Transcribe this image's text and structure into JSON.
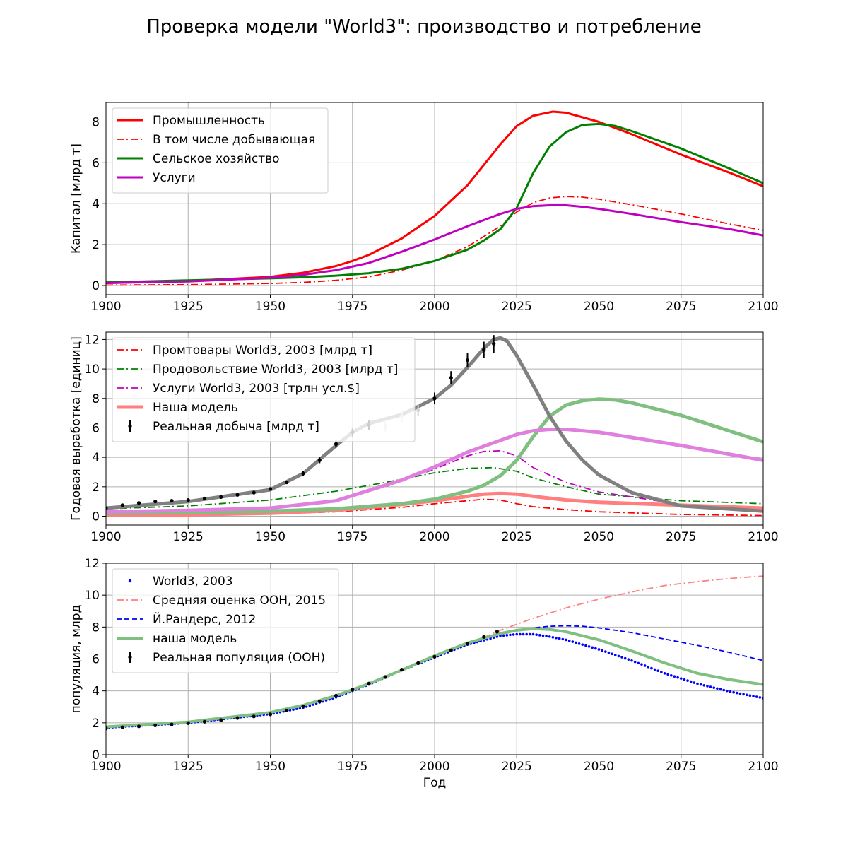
{
  "title": "Проверка модели \"World3\": производство и потребление",
  "colors": {
    "red": "#ff0000",
    "green": "#008000",
    "magenta": "#bf00bf",
    "black": "#000000",
    "grey": "#808080",
    "light_grey": "#d3d3d3",
    "salmon": "#ff7f7f",
    "light_green": "#7fbf7f",
    "orchid": "#df80df",
    "blue": "#0000ff",
    "pink": "#ff8080",
    "grid": "#b0b0b0"
  },
  "chart_data": [
    {
      "type": "line",
      "xlabel": "",
      "ylabel": "Капитал [млрд т]",
      "xlim": [
        1900,
        2100
      ],
      "ylim": [
        -0.45,
        8.95
      ],
      "xticks": [
        1900,
        1925,
        1950,
        1975,
        2000,
        2025,
        2050,
        2075,
        2100
      ],
      "yticks": [
        0,
        2,
        4,
        6,
        8
      ],
      "grid": true,
      "legend_position": "top-left",
      "series": [
        {
          "name": "Промышленность",
          "color": "#ff0000",
          "style": "solid",
          "width": 3,
          "x": [
            1900,
            1925,
            1950,
            1960,
            1970,
            1975,
            1980,
            1990,
            2000,
            2010,
            2020,
            2025,
            2030,
            2036,
            2040,
            2050,
            2060,
            2075,
            2090,
            2100
          ],
          "y": [
            0.12,
            0.22,
            0.42,
            0.62,
            0.95,
            1.2,
            1.5,
            2.3,
            3.4,
            4.9,
            6.9,
            7.8,
            8.3,
            8.5,
            8.45,
            8.0,
            7.4,
            6.4,
            5.5,
            4.85
          ]
        },
        {
          "name": "В том числе добывающая",
          "color": "#ff0000",
          "style": "dashdot",
          "width": 1.8,
          "x": [
            1900,
            1925,
            1950,
            1960,
            1970,
            1980,
            1990,
            2000,
            2010,
            2020,
            2025,
            2030,
            2035,
            2040,
            2045,
            2050,
            2060,
            2075,
            2090,
            2100
          ],
          "y": [
            0.02,
            0.04,
            0.1,
            0.15,
            0.25,
            0.42,
            0.75,
            1.2,
            1.9,
            2.9,
            3.6,
            4.05,
            4.28,
            4.35,
            4.32,
            4.22,
            3.95,
            3.5,
            3.0,
            2.7
          ]
        },
        {
          "name": "Сельское хозяйство",
          "color": "#008000",
          "style": "solid",
          "width": 3,
          "x": [
            1900,
            1925,
            1950,
            1960,
            1970,
            1980,
            1990,
            2000,
            2010,
            2015,
            2020,
            2025,
            2030,
            2035,
            2040,
            2045,
            2050,
            2055,
            2060,
            2075,
            2090,
            2100
          ],
          "y": [
            0.15,
            0.25,
            0.35,
            0.4,
            0.48,
            0.6,
            0.82,
            1.2,
            1.75,
            2.2,
            2.75,
            3.8,
            5.5,
            6.8,
            7.5,
            7.85,
            7.9,
            7.8,
            7.55,
            6.7,
            5.7,
            5.0
          ]
        },
        {
          "name": "Услуги",
          "color": "#bf00bf",
          "style": "solid",
          "width": 3,
          "x": [
            1900,
            1925,
            1950,
            1960,
            1970,
            1980,
            1990,
            2000,
            2010,
            2020,
            2025,
            2030,
            2035,
            2040,
            2045,
            2050,
            2060,
            2075,
            2090,
            2100
          ],
          "y": [
            0.12,
            0.2,
            0.38,
            0.52,
            0.75,
            1.1,
            1.65,
            2.25,
            2.9,
            3.5,
            3.75,
            3.88,
            3.92,
            3.92,
            3.85,
            3.75,
            3.5,
            3.1,
            2.75,
            2.45
          ]
        }
      ]
    },
    {
      "type": "line",
      "xlabel": "",
      "ylabel": "Годовая выработка [единиц]",
      "xlim": [
        1900,
        2100
      ],
      "ylim": [
        -0.6,
        12.5
      ],
      "xticks": [
        1900,
        1925,
        1950,
        1975,
        2000,
        2025,
        2050,
        2075,
        2100
      ],
      "yticks": [
        0,
        2,
        4,
        6,
        8,
        10,
        12
      ],
      "grid": true,
      "legend_position": "top-left",
      "series": [
        {
          "name": "Промтовары World3, 2003 [млрд т]",
          "color": "#ff0000",
          "style": "dashdot",
          "width": 1.8,
          "in_legend": true,
          "x": [
            1900,
            1925,
            1950,
            1970,
            1990,
            2000,
            2010,
            2015,
            2020,
            2025,
            2030,
            2040,
            2050,
            2075,
            2100
          ],
          "y": [
            0.05,
            0.08,
            0.15,
            0.3,
            0.6,
            0.85,
            1.05,
            1.15,
            1.1,
            0.85,
            0.65,
            0.45,
            0.3,
            0.12,
            0.05
          ]
        },
        {
          "name": "Продовольствие World3, 2003 [млрд т]",
          "color": "#008000",
          "style": "dashdot",
          "width": 1.8,
          "in_legend": true,
          "x": [
            1900,
            1925,
            1950,
            1970,
            1985,
            2000,
            2010,
            2018,
            2025,
            2030,
            2040,
            2050,
            2075,
            2100
          ],
          "y": [
            0.5,
            0.7,
            1.1,
            1.7,
            2.3,
            2.95,
            3.25,
            3.3,
            3.05,
            2.6,
            2.0,
            1.5,
            1.05,
            0.85
          ]
        },
        {
          "name": "Услуги World3, 2003 [трлн усл.$]",
          "color": "#bf00bf",
          "style": "dashdot",
          "width": 1.8,
          "in_legend": true,
          "x": [
            1900,
            1925,
            1950,
            1970,
            1985,
            2000,
            2010,
            2015,
            2020,
            2025,
            2030,
            2040,
            2050,
            2075,
            2100
          ],
          "y": [
            0.2,
            0.3,
            0.6,
            1.1,
            2.0,
            3.2,
            4.1,
            4.4,
            4.45,
            4.1,
            3.3,
            2.3,
            1.65,
            0.8,
            0.4
          ]
        },
        {
          "name": "Наша модель",
          "color": "#ff7f7f",
          "style": "solid",
          "width": 5,
          "in_legend": true,
          "x": [
            1900,
            1925,
            1950,
            1970,
            1990,
            2000,
            2010,
            2015,
            2020,
            2025,
            2030,
            2040,
            2050,
            2075,
            2100
          ],
          "y": [
            0.05,
            0.1,
            0.2,
            0.4,
            0.8,
            1.05,
            1.35,
            1.5,
            1.55,
            1.5,
            1.35,
            1.1,
            0.95,
            0.75,
            0.55
          ]
        },
        {
          "name": "Наша модель (сельское хозяйство)",
          "color": "#7fbf7f",
          "style": "solid",
          "width": 5,
          "in_legend": false,
          "x": [
            1900,
            1925,
            1950,
            1970,
            1990,
            2000,
            2010,
            2015,
            2020,
            2025,
            2030,
            2035,
            2040,
            2045,
            2050,
            2055,
            2060,
            2075,
            2100
          ],
          "y": [
            0.2,
            0.25,
            0.35,
            0.5,
            0.85,
            1.15,
            1.7,
            2.1,
            2.75,
            3.8,
            5.4,
            6.8,
            7.55,
            7.85,
            7.95,
            7.9,
            7.7,
            6.85,
            5.05
          ]
        },
        {
          "name": "Наша модель (услуги)",
          "color": "#df80df",
          "style": "solid",
          "width": 5,
          "in_legend": false,
          "x": [
            1900,
            1925,
            1950,
            1970,
            1990,
            2000,
            2010,
            2020,
            2025,
            2030,
            2035,
            2040,
            2045,
            2050,
            2060,
            2075,
            2100
          ],
          "y": [
            0.3,
            0.4,
            0.55,
            1.05,
            2.45,
            3.35,
            4.35,
            5.15,
            5.55,
            5.8,
            5.9,
            5.9,
            5.8,
            5.7,
            5.35,
            4.8,
            3.8
          ]
        },
        {
          "name": "Наша модель (добыча)",
          "color": "#808080",
          "style": "solid",
          "width": 5,
          "in_legend": false,
          "x": [
            1900,
            1925,
            1950,
            1960,
            1970,
            1975,
            1980,
            1990,
            2000,
            2005,
            2010,
            2015,
            2018,
            2020,
            2022,
            2025,
            2030,
            2035,
            2040,
            2045,
            2050,
            2060,
            2075,
            2100
          ],
          "y": [
            0.55,
            1.0,
            1.8,
            2.9,
            4.8,
            5.7,
            6.3,
            6.9,
            8.0,
            8.9,
            10.1,
            11.4,
            12.0,
            12.1,
            11.9,
            10.9,
            8.9,
            6.8,
            5.1,
            3.8,
            2.8,
            1.6,
            0.7,
            0.35
          ]
        }
      ],
      "observed": {
        "name": "Реальная добыча [млрд т]",
        "color": "#000000",
        "x": [
          1900,
          1905,
          1910,
          1915,
          1920,
          1925,
          1930,
          1935,
          1940,
          1945,
          1950,
          1955,
          1960,
          1965,
          1970,
          1975,
          1980,
          1985,
          1990,
          1995,
          2000,
          2005,
          2010,
          2015,
          2018
        ],
        "y": [
          0.55,
          0.75,
          0.9,
          1.0,
          1.05,
          1.1,
          1.2,
          1.3,
          1.45,
          1.6,
          1.85,
          2.3,
          2.9,
          3.8,
          4.9,
          5.7,
          6.2,
          6.1,
          6.8,
          7.2,
          8.0,
          9.4,
          10.6,
          11.3,
          11.7
        ],
        "err": [
          0.05,
          0.05,
          0.05,
          0.05,
          0.05,
          0.05,
          0.06,
          0.06,
          0.07,
          0.08,
          0.1,
          0.12,
          0.15,
          0.2,
          0.25,
          0.3,
          0.35,
          0.35,
          0.4,
          0.4,
          0.4,
          0.45,
          0.5,
          0.55,
          0.6
        ],
        "light_range": [
          1980,
          2000
        ]
      }
    },
    {
      "type": "line",
      "xlabel": "Год",
      "ylabel": "популяция, млрд",
      "xlim": [
        1900,
        2100
      ],
      "ylim": [
        0,
        12
      ],
      "xticks": [
        1900,
        1925,
        1950,
        1975,
        2000,
        2025,
        2050,
        2075,
        2100
      ],
      "yticks": [
        0,
        2,
        4,
        6,
        8,
        10,
        12
      ],
      "grid": true,
      "legend_position": "top-left",
      "series": [
        {
          "name": "World3, 2003",
          "color": "#0000ff",
          "style": "dots",
          "width": 3,
          "in_legend": true,
          "x": [
            1900,
            1925,
            1950,
            1960,
            1970,
            1980,
            1990,
            2000,
            2010,
            2020,
            2025,
            2030,
            2035,
            2040,
            2045,
            2050,
            2060,
            2070,
            2080,
            2090,
            2100
          ],
          "y": [
            1.7,
            2.0,
            2.55,
            2.95,
            3.6,
            4.4,
            5.3,
            6.1,
            6.9,
            7.45,
            7.55,
            7.55,
            7.4,
            7.2,
            6.9,
            6.6,
            5.9,
            5.1,
            4.45,
            3.95,
            3.55
          ]
        },
        {
          "name": "Средняя оценка ООН, 2015",
          "color": "#ff8080",
          "style": "dashdot",
          "width": 1.8,
          "in_legend": true,
          "x": [
            2015,
            2020,
            2030,
            2040,
            2050,
            2060,
            2070,
            2080,
            2090,
            2100
          ],
          "y": [
            7.35,
            7.8,
            8.55,
            9.2,
            9.75,
            10.2,
            10.6,
            10.85,
            11.05,
            11.2
          ]
        },
        {
          "name": "Й.Рандерс, 2012",
          "color": "#0000ff",
          "style": "dashed",
          "width": 1.8,
          "in_legend": true,
          "x": [
            2010,
            2020,
            2030,
            2035,
            2040,
            2045,
            2050,
            2060,
            2070,
            2080,
            2090,
            2100
          ],
          "y": [
            6.9,
            7.55,
            7.95,
            8.05,
            8.08,
            8.05,
            7.95,
            7.65,
            7.25,
            6.85,
            6.4,
            5.9
          ]
        },
        {
          "name": "наша модель",
          "color": "#7fbf7f",
          "style": "solid",
          "width": 4,
          "in_legend": true,
          "x": [
            1900,
            1925,
            1950,
            1960,
            1970,
            1980,
            1990,
            2000,
            2010,
            2020,
            2025,
            2030,
            2035,
            2040,
            2050,
            2060,
            2070,
            2080,
            2090,
            2100
          ],
          "y": [
            1.75,
            2.05,
            2.65,
            3.1,
            3.7,
            4.45,
            5.3,
            6.2,
            7.0,
            7.6,
            7.8,
            7.9,
            7.85,
            7.7,
            7.2,
            6.5,
            5.75,
            5.1,
            4.7,
            4.4
          ]
        }
      ],
      "observed": {
        "name": "Реальная популяция (ООН)",
        "color": "#000000",
        "x": [
          1900,
          1905,
          1910,
          1915,
          1920,
          1925,
          1930,
          1935,
          1940,
          1945,
          1950,
          1955,
          1960,
          1965,
          1970,
          1975,
          1980,
          1985,
          1990,
          1995,
          2000,
          2005,
          2010,
          2015,
          2019
        ],
        "y": [
          1.65,
          1.72,
          1.78,
          1.84,
          1.9,
          1.98,
          2.07,
          2.17,
          2.3,
          2.4,
          2.53,
          2.77,
          3.03,
          3.34,
          3.7,
          4.08,
          4.46,
          4.87,
          5.33,
          5.74,
          6.14,
          6.54,
          6.96,
          7.38,
          7.71
        ],
        "err": [
          0.05,
          0.05,
          0.05,
          0.05,
          0.05,
          0.05,
          0.05,
          0.05,
          0.05,
          0.05,
          0.05,
          0.05,
          0.05,
          0.05,
          0.05,
          0.05,
          0.05,
          0.05,
          0.05,
          0.05,
          0.05,
          0.05,
          0.05,
          0.05,
          0.05
        ]
      }
    }
  ]
}
